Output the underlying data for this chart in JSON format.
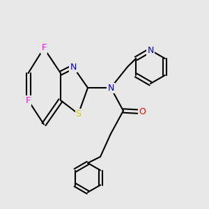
{
  "bg_color": "#e8e8e8",
  "figsize": [
    3.0,
    3.0
  ],
  "dpi": 100,
  "bond_color": "#000000",
  "bond_lw": 1.5,
  "colors": {
    "C": "#000000",
    "N": "#0000cc",
    "O": "#ff0000",
    "S": "#cccc00",
    "F": "#ff00ff"
  },
  "font_size": 9
}
